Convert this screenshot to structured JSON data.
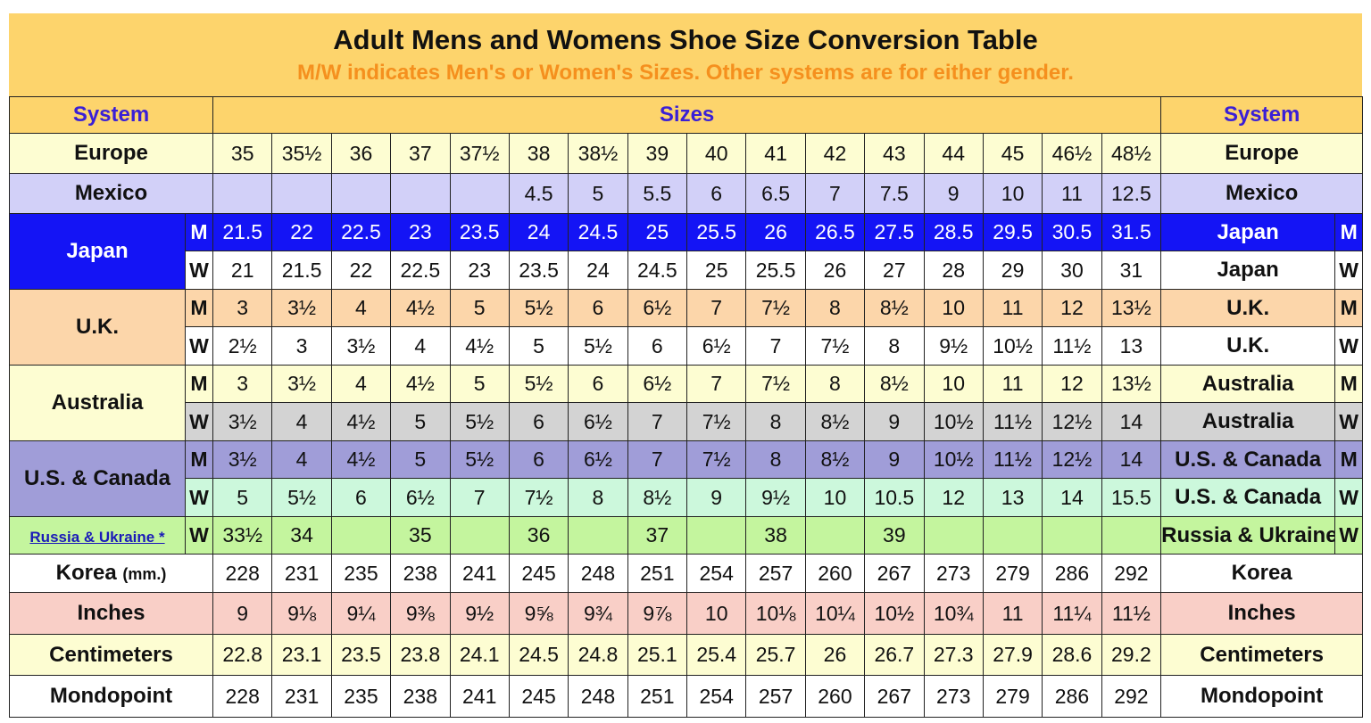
{
  "title": "Adult Mens and Womens Shoe Size Conversion Table",
  "subtitle": "M/W indicates Men's or Women's Sizes. Other systems are for either gender.",
  "header": {
    "system_left": "System",
    "sizes": "Sizes",
    "system_right": "System"
  },
  "colors": {
    "title_bg": "#fdd46c",
    "subtitle": "#f5901e",
    "header_text": "#3a1fd6"
  },
  "rows": [
    {
      "label": "Europe",
      "span": 1,
      "mw": "",
      "bg": "#fdfdd2",
      "fg": "#111",
      "right_label": "Europe",
      "right_mw": "",
      "values": [
        "35",
        "35½",
        "36",
        "37",
        "37½",
        "38",
        "38½",
        "39",
        "40",
        "41",
        "42",
        "43",
        "44",
        "45",
        "46½",
        "48½"
      ]
    },
    {
      "label": "Mexico",
      "span": 1,
      "mw": "",
      "bg": "#d2d0f8",
      "fg": "#111",
      "right_label": "Mexico",
      "right_mw": "",
      "values": [
        "",
        "",
        "",
        "",
        "",
        "4.5",
        "5",
        "5.5",
        "6",
        "6.5",
        "7",
        "7.5",
        "9",
        "10",
        "11",
        "12.5"
      ]
    },
    {
      "label": "Japan",
      "span": 2,
      "label_bg": "#1414f5",
      "label_fg": "#fff",
      "mw": "M",
      "bg": "#1414f5",
      "fg": "#fff",
      "right_label": "Japan",
      "right_mw": "M",
      "values": [
        "21.5",
        "22",
        "22.5",
        "23",
        "23.5",
        "24",
        "24.5",
        "25",
        "25.5",
        "26",
        "26.5",
        "27.5",
        "28.5",
        "29.5",
        "30.5",
        "31.5"
      ]
    },
    {
      "mw": "W",
      "bg": "#ffffff",
      "fg": "#111",
      "right_label": "Japan",
      "right_mw": "W",
      "values": [
        "21",
        "21.5",
        "22",
        "22.5",
        "23",
        "23.5",
        "24",
        "24.5",
        "25",
        "25.5",
        "26",
        "27",
        "28",
        "29",
        "30",
        "31"
      ]
    },
    {
      "label": "U.K.",
      "span": 2,
      "label_bg": "#fcd6aa",
      "label_fg": "#111",
      "mw": "M",
      "bg": "#fcd6aa",
      "fg": "#111",
      "right_label": "U.K.",
      "right_mw": "M",
      "values": [
        "3",
        "3½",
        "4",
        "4½",
        "5",
        "5½",
        "6",
        "6½",
        "7",
        "7½",
        "8",
        "8½",
        "10",
        "11",
        "12",
        "13½"
      ]
    },
    {
      "mw": "W",
      "bg": "#ffffff",
      "fg": "#111",
      "right_label": "U.K.",
      "right_mw": "W",
      "values": [
        "2½",
        "3",
        "3½",
        "4",
        "4½",
        "5",
        "5½",
        "6",
        "6½",
        "7",
        "7½",
        "8",
        "9½",
        "10½",
        "11½",
        "13"
      ]
    },
    {
      "label": "Australia",
      "span": 2,
      "label_bg": "#fdfdd2",
      "label_fg": "#111",
      "mw": "M",
      "bg": "#fdfdd2",
      "fg": "#111",
      "right_label": "Australia",
      "right_mw": "M",
      "values": [
        "3",
        "3½",
        "4",
        "4½",
        "5",
        "5½",
        "6",
        "6½",
        "7",
        "7½",
        "8",
        "8½",
        "10",
        "11",
        "12",
        "13½"
      ]
    },
    {
      "mw": "W",
      "bg": "#d3d3d3",
      "fg": "#111",
      "right_label": "Australia",
      "right_mw": "W",
      "values": [
        "3½",
        "4",
        "4½",
        "5",
        "5½",
        "6",
        "6½",
        "7",
        "7½",
        "8",
        "8½",
        "9",
        "10½",
        "11½",
        "12½",
        "14"
      ]
    },
    {
      "label": "U.S. & Canada",
      "span": 2,
      "label_bg": "#a09dd8",
      "label_fg": "#111",
      "mw": "M",
      "bg": "#a09dd8",
      "fg": "#111",
      "right_label": "U.S. & Canada",
      "right_mw": "M",
      "values": [
        "3½",
        "4",
        "4½",
        "5",
        "5½",
        "6",
        "6½",
        "7",
        "7½",
        "8",
        "8½",
        "9",
        "10½",
        "11½",
        "12½",
        "14"
      ]
    },
    {
      "mw": "W",
      "bg": "#ccf8dc",
      "fg": "#111",
      "right_label": "U.S. & Canada",
      "right_mw": "W",
      "values": [
        "5",
        "5½",
        "6",
        "6½",
        "7",
        "7½",
        "8",
        "8½",
        "9",
        "9½",
        "10",
        "10.5",
        "12",
        "13",
        "14",
        "15.5"
      ]
    },
    {
      "label": "Russia & Ukraine *",
      "span": 1,
      "link": true,
      "mw": "W",
      "bg": "#c4f59e",
      "fg": "#111",
      "right_label": "Russia & Ukraine",
      "right_mw": "W",
      "values": [
        "33½",
        "34",
        "",
        "35",
        "",
        "36",
        "",
        "37",
        "",
        "38",
        "",
        "39",
        "",
        "",
        "",
        ""
      ]
    },
    {
      "label": "Korea",
      "label_suffix": "(mm.)",
      "span": 1,
      "mw": "",
      "bg": "#ffffff",
      "fg": "#111",
      "right_label": "Korea",
      "right_mw": "",
      "values": [
        "228",
        "231",
        "235",
        "238",
        "241",
        "245",
        "248",
        "251",
        "254",
        "257",
        "260",
        "267",
        "273",
        "279",
        "286",
        "292"
      ]
    },
    {
      "label": "Inches",
      "span": 1,
      "mw": "",
      "bg": "#f9cfc7",
      "fg": "#111",
      "right_label": "Inches",
      "right_mw": "",
      "values": [
        "9",
        "9⅛",
        "9¼",
        "9⅜",
        "9½",
        "9⅝",
        "9¾",
        "9⅞",
        "10",
        "10⅛",
        "10¼",
        "10½",
        "10¾",
        "11",
        "11¼",
        "11½"
      ]
    },
    {
      "label": "Centimeters",
      "span": 1,
      "mw": "",
      "bg": "#fdfdd2",
      "fg": "#111",
      "right_label": "Centimeters",
      "right_mw": "",
      "values": [
        "22.8",
        "23.1",
        "23.5",
        "23.8",
        "24.1",
        "24.5",
        "24.8",
        "25.1",
        "25.4",
        "25.7",
        "26",
        "26.7",
        "27.3",
        "27.9",
        "28.6",
        "29.2"
      ]
    },
    {
      "label": "Mondopoint",
      "span": 1,
      "mw": "",
      "bg": "#ffffff",
      "fg": "#111",
      "right_label": "Mondopoint",
      "right_mw": "",
      "values": [
        "228",
        "231",
        "235",
        "238",
        "241",
        "245",
        "248",
        "251",
        "254",
        "257",
        "260",
        "267",
        "273",
        "279",
        "286",
        "292"
      ]
    }
  ]
}
